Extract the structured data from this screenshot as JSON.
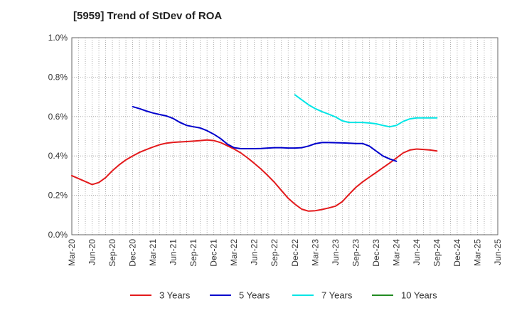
{
  "chart_data": {
    "type": "line",
    "title": "[5959]  Trend of StDev of ROA",
    "xlabel": "",
    "ylabel": "",
    "ylim": [
      0,
      1.0
    ],
    "y_ticks": [
      "0.0%",
      "0.2%",
      "0.4%",
      "0.6%",
      "0.8%",
      "1.0%"
    ],
    "y_tick_values": [
      0,
      0.2,
      0.4,
      0.6,
      0.8,
      1.0
    ],
    "x_ticks": [
      "Mar-20",
      "Jun-20",
      "Sep-20",
      "Dec-20",
      "Mar-21",
      "Jun-21",
      "Sep-21",
      "Dec-21",
      "Mar-22",
      "Jun-22",
      "Sep-22",
      "Dec-22",
      "Mar-23",
      "Jun-23",
      "Sep-23",
      "Dec-23",
      "Mar-24",
      "Jun-24",
      "Sep-24",
      "Dec-24",
      "Mar-25",
      "Jun-25"
    ],
    "grid": "dotted",
    "legend_position": "bottom",
    "series": [
      {
        "name": "3 Years",
        "color": "#e31a1c",
        "start_index": 0,
        "values": [
          0.3,
          0.285,
          0.27,
          0.255,
          0.265,
          0.29,
          0.325,
          0.355,
          0.38,
          0.4,
          0.418,
          0.432,
          0.445,
          0.457,
          0.465,
          0.469,
          0.471,
          0.473,
          0.475,
          0.478,
          0.481,
          0.478,
          0.468,
          0.452,
          0.435,
          0.415,
          0.39,
          0.362,
          0.333,
          0.3,
          0.265,
          0.225,
          0.185,
          0.155,
          0.13,
          0.12,
          0.122,
          0.128,
          0.136,
          0.145,
          0.168,
          0.205,
          0.24,
          0.268,
          0.292,
          0.316,
          0.34,
          0.364,
          0.389,
          0.415,
          0.43,
          0.435,
          0.433,
          0.43,
          0.425
        ]
      },
      {
        "name": "5 Years",
        "color": "#0000cc",
        "start_index": 9,
        "values": [
          0.65,
          0.64,
          0.628,
          0.618,
          0.61,
          0.603,
          0.59,
          0.57,
          0.555,
          0.548,
          0.542,
          0.528,
          0.51,
          0.488,
          0.46,
          0.442,
          0.437,
          0.437,
          0.437,
          0.438,
          0.44,
          0.442,
          0.442,
          0.44,
          0.44,
          0.442,
          0.45,
          0.462,
          0.468,
          0.468,
          0.467,
          0.466,
          0.465,
          0.463,
          0.463,
          0.45,
          0.425,
          0.4,
          0.385,
          0.373
        ]
      },
      {
        "name": "7 Years",
        "color": "#00e5e5",
        "start_index": 33,
        "values": [
          0.71,
          0.685,
          0.66,
          0.64,
          0.625,
          0.612,
          0.598,
          0.578,
          0.57,
          0.57,
          0.57,
          0.567,
          0.563,
          0.555,
          0.548,
          0.555,
          0.575,
          0.588,
          0.593,
          0.593,
          0.593,
          0.593
        ]
      },
      {
        "name": "10 Years",
        "color": "#228b22",
        "start_index": 0,
        "values": []
      }
    ]
  }
}
